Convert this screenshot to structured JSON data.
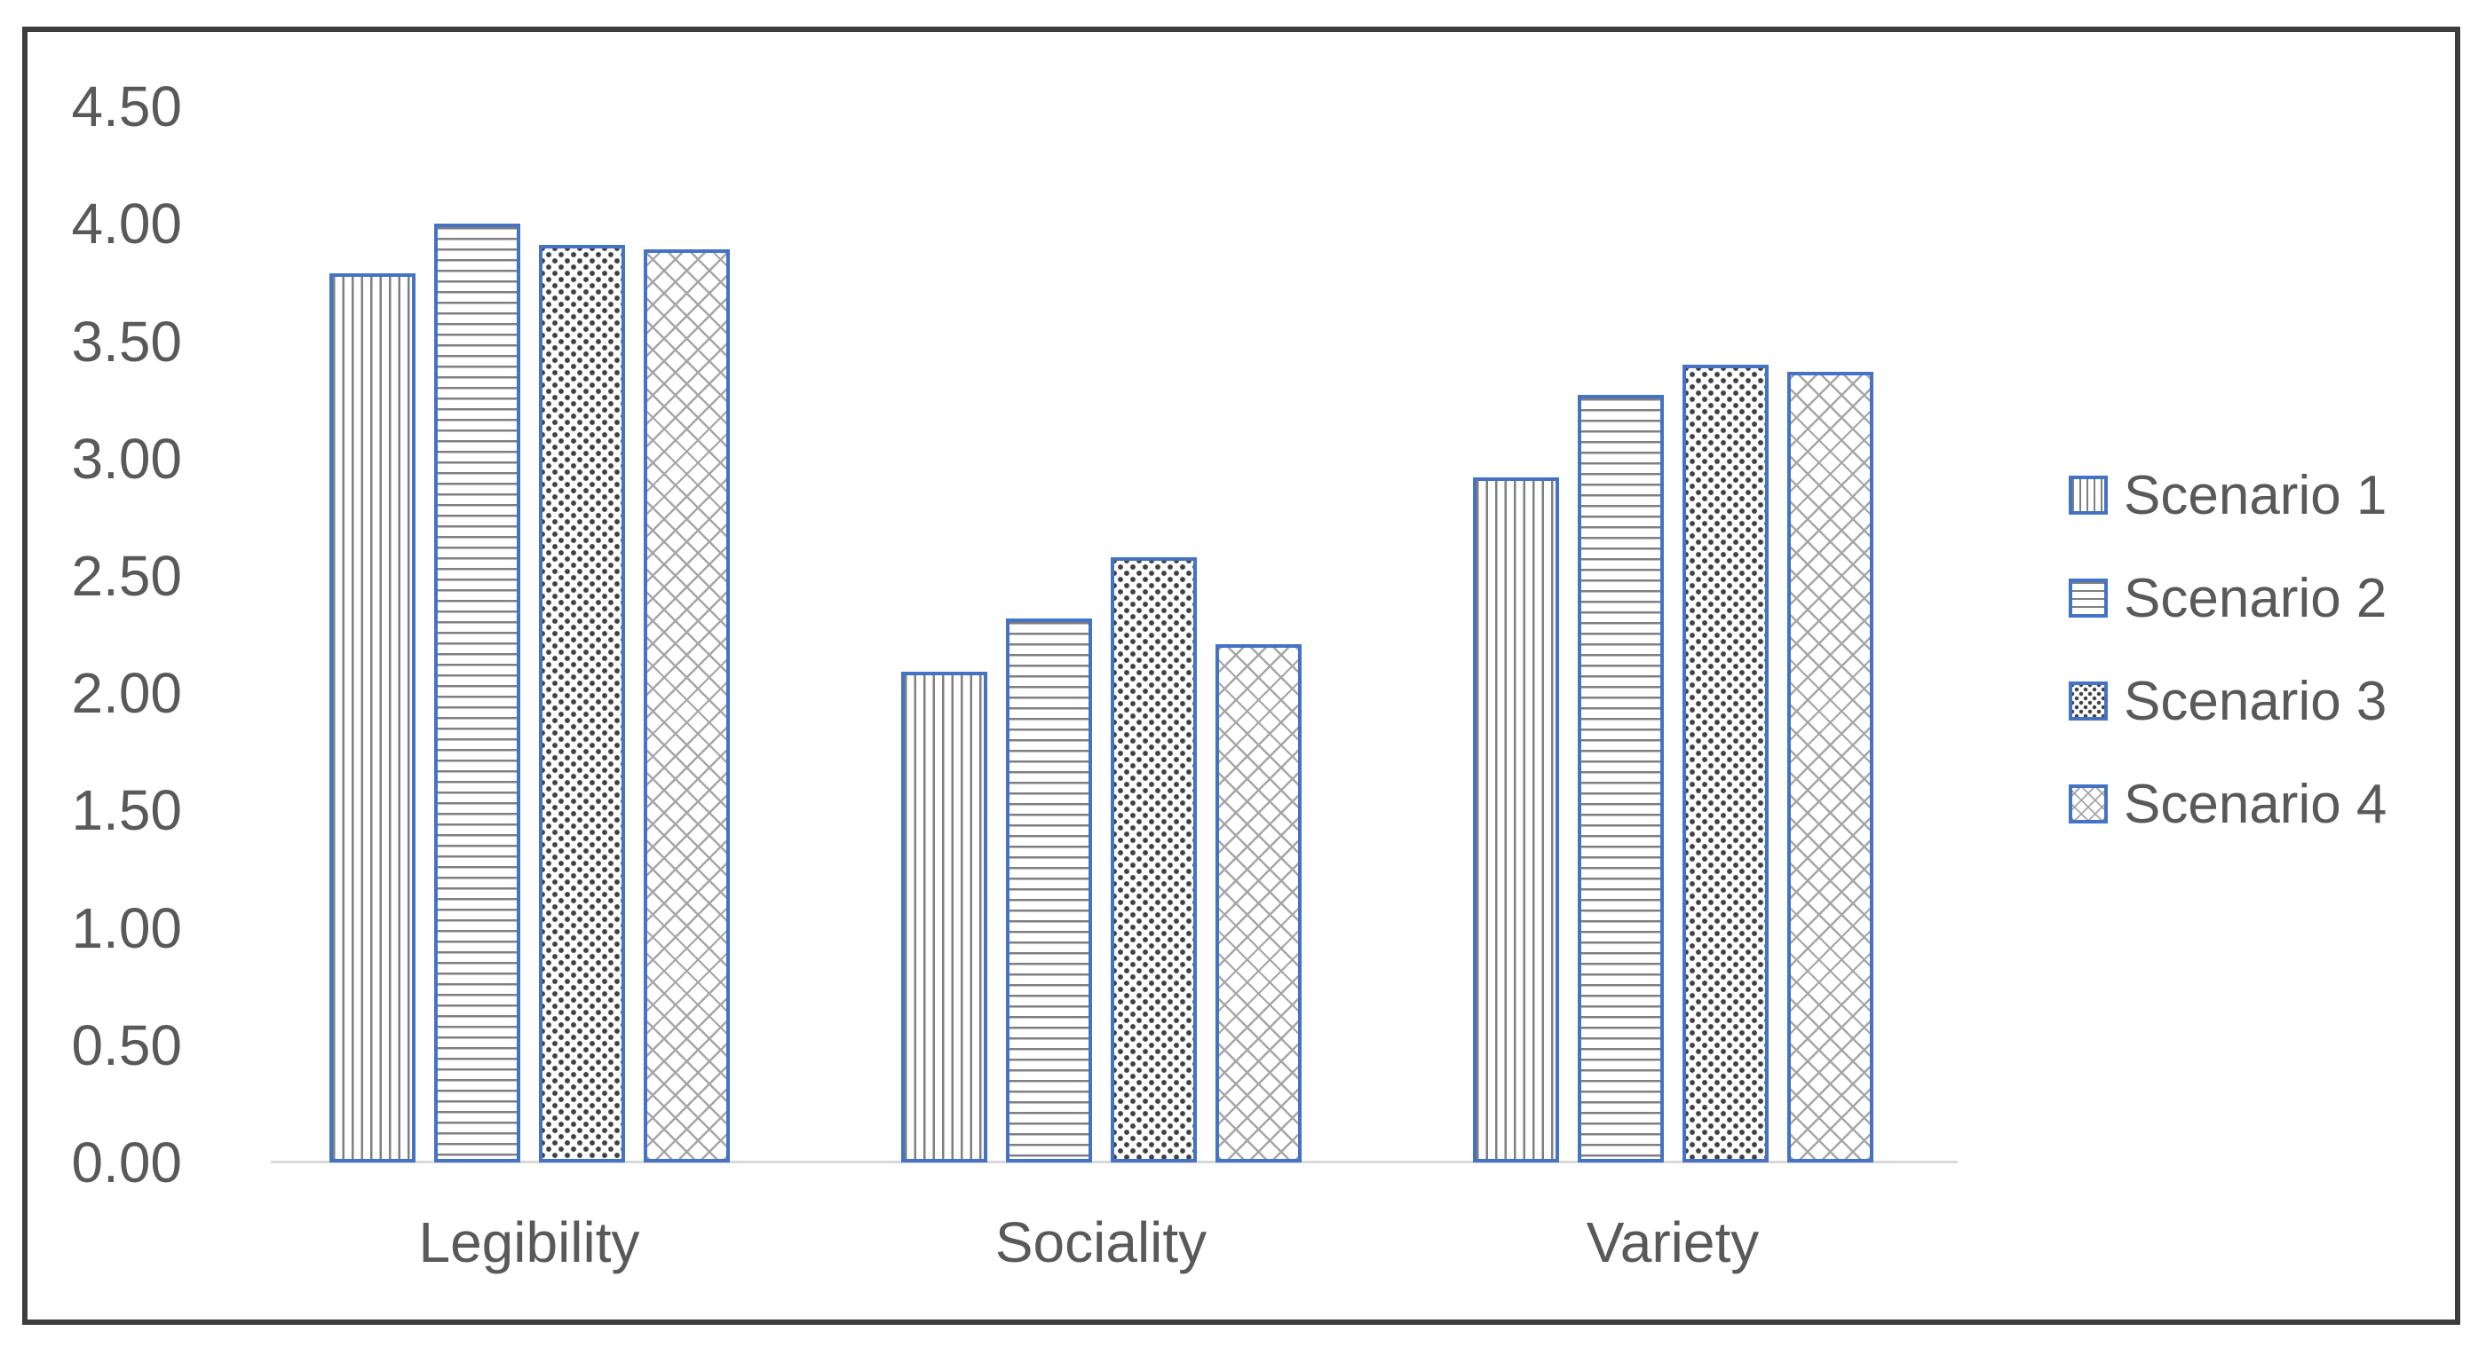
{
  "chart_data": {
    "type": "bar",
    "title": "",
    "xlabel": "",
    "ylabel": "",
    "categories": [
      "Legibility",
      "Sociality",
      "Variety"
    ],
    "series": [
      {
        "name": "Scenario 1",
        "pattern": "vertical-lines",
        "values": [
          3.79,
          2.09,
          2.92
        ]
      },
      {
        "name": "Scenario 2",
        "pattern": "horizontal-lines",
        "values": [
          4.0,
          2.32,
          3.27
        ]
      },
      {
        "name": "Scenario 3",
        "pattern": "dots",
        "values": [
          3.91,
          2.58,
          3.4
        ]
      },
      {
        "name": "Scenario 4",
        "pattern": "crosshatch",
        "values": [
          3.89,
          2.21,
          3.37
        ]
      }
    ],
    "ylim": [
      0,
      4.5
    ],
    "y_tick_step": 0.5,
    "y_ticks": [
      "4.50",
      "4.00",
      "3.50",
      "3.00",
      "2.50",
      "2.00",
      "1.50",
      "1.00",
      "0.50",
      "0.00"
    ],
    "grid": false,
    "legend_position": "right",
    "bar_style": "white fill with patterned texture and blue outline"
  },
  "colors": {
    "bar_border": "#4472c4",
    "pattern_lines": "#7f7f7f",
    "pattern_dots": "#404040",
    "pattern_hatch": "#a6a6a6",
    "axis_text": "#595959",
    "axis_line": "#d9d9d9",
    "frame_border": "#3d3d3d",
    "background": "#ffffff"
  }
}
